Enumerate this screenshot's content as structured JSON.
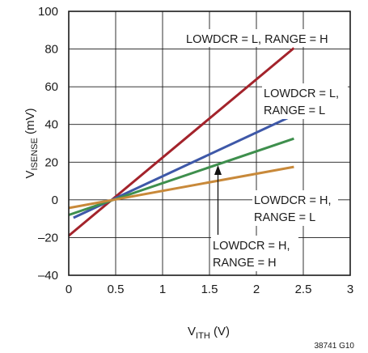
{
  "chart_data": {
    "type": "line",
    "title": "",
    "xlabel": {
      "main": "V",
      "sub": "ITH",
      "unit": " (V)"
    },
    "ylabel": {
      "main": "V",
      "sub": "ISENSE",
      "unit": " (mV)"
    },
    "xlim": [
      0,
      3
    ],
    "ylim": [
      -40,
      100
    ],
    "x_ticks": [
      "0",
      "0.5",
      "1",
      "1.5",
      "2",
      "2.5",
      "3"
    ],
    "y_ticks": [
      "–40",
      "–20",
      "0",
      "20",
      "40",
      "60",
      "80",
      "100"
    ],
    "grid": true,
    "legend": "none",
    "series": [
      {
        "label_lines": [
          "LOWDCR = L, RANGE = H"
        ],
        "color": "#a3232b",
        "x": [
          0,
          2.4
        ],
        "y": [
          -19,
          80.5
        ]
      },
      {
        "label_lines": [
          "LOWDCR = L,",
          "RANGE = L"
        ],
        "color": "#3e58a8",
        "x": [
          0.05,
          2.4
        ],
        "y": [
          -9.5,
          45
        ]
      },
      {
        "label_lines": [
          "LOWDCR = H,",
          "RANGE = H"
        ],
        "color": "#3e8f4d",
        "x": [
          0,
          2.4
        ],
        "y": [
          -8,
          32.5
        ]
      },
      {
        "label_lines": [
          "LOWDCR = H,",
          "RANGE = L"
        ],
        "color": "#c8893a",
        "x": [
          0,
          2.4
        ],
        "y": [
          -4.3,
          17.5
        ]
      }
    ],
    "figure_code": "38741 G10"
  }
}
